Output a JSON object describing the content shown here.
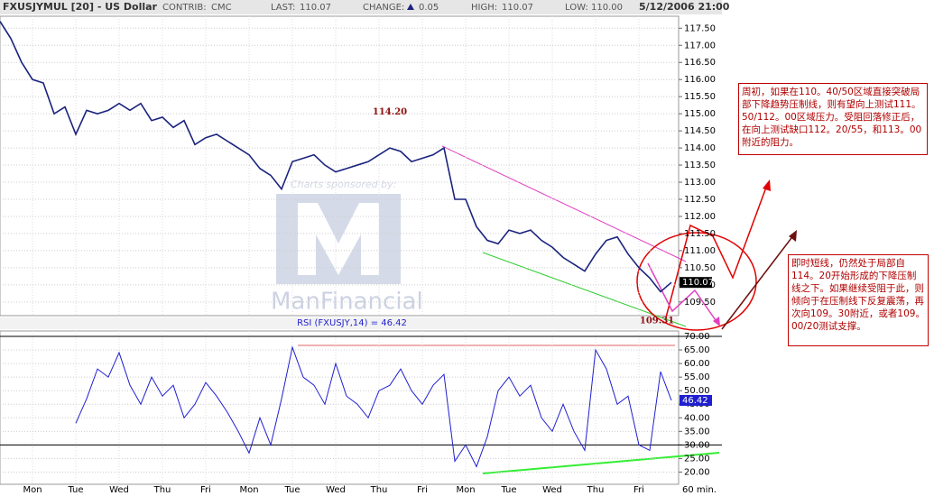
{
  "header": {
    "title": "FXUSJYMUL [20] - US Dollar",
    "fields": [
      {
        "label": "CONTRIB:",
        "value": "CMC"
      },
      {
        "label": "LAST:",
        "value": "110.07"
      },
      {
        "label": "CHANGE:",
        "value": "0.05"
      },
      {
        "label": "HIGH:",
        "value": "110.07"
      },
      {
        "label": "LOW:",
        "value": "110.00"
      }
    ],
    "date": "5/12/2006 21:00"
  },
  "watermark": {
    "caption": "Charts sponsored by:",
    "brand": "ManFinancial"
  },
  "chart_data": [
    {
      "type": "line",
      "xlim": [
        0,
        62.5
      ],
      "ylim": [
        109.1,
        117.85
      ],
      "grid": true,
      "series": [
        {
          "name": "FXUSJYMUL",
          "color": "#1a237e",
          "values": [
            117.7,
            117.2,
            116.5,
            116.0,
            115.9,
            115.0,
            115.2,
            114.4,
            115.1,
            115.0,
            115.1,
            115.3,
            115.1,
            115.3,
            114.8,
            114.9,
            114.6,
            114.8,
            114.1,
            114.3,
            114.4,
            114.2,
            114.0,
            113.8,
            113.4,
            113.2,
            112.8,
            113.6,
            113.7,
            113.8,
            113.5,
            113.3,
            113.4,
            113.5,
            113.6,
            113.8,
            114.0,
            113.9,
            113.6,
            113.7,
            113.8,
            114.0,
            112.5,
            112.5,
            111.7,
            111.3,
            111.2,
            111.6,
            111.5,
            111.6,
            111.3,
            111.1,
            110.8,
            110.6,
            110.4,
            110.9,
            111.3,
            111.4,
            110.9,
            110.5,
            110.2,
            109.8,
            110.07
          ]
        }
      ],
      "last_marker": 110.07,
      "annotations": [
        {
          "text": "114.20",
          "value": 114.2
        },
        {
          "text": "109.31",
          "value": 109.31
        }
      ],
      "yticks": [
        {
          "value": 109.5,
          "label": "109.50"
        },
        {
          "value": 110,
          "label": "110.00"
        },
        {
          "value": 110.5,
          "label": "110.50"
        },
        {
          "value": 111,
          "label": "111.00"
        },
        {
          "value": 111.5,
          "label": "111.50"
        },
        {
          "value": 112,
          "label": "112.00"
        },
        {
          "value": 112.5,
          "label": "112.50"
        },
        {
          "value": 113,
          "label": "113.00"
        },
        {
          "value": 113.5,
          "label": "113.50"
        },
        {
          "value": 114,
          "label": "114.00"
        },
        {
          "value": 114.5,
          "label": "114.50"
        },
        {
          "value": 115,
          "label": "115.00"
        },
        {
          "value": 115.5,
          "label": "115.50"
        },
        {
          "value": 116,
          "label": "116.00"
        },
        {
          "value": 116.5,
          "label": "116.50"
        },
        {
          "value": 117,
          "label": "117.00"
        },
        {
          "value": 117.5,
          "label": "117.50"
        }
      ]
    },
    {
      "type": "line",
      "title": "RSI (FXUSJY,14) = 46.42",
      "xlim": [
        0,
        62.5
      ],
      "ylim": [
        15.5,
        72
      ],
      "grid": true,
      "series": [
        {
          "name": "RSI",
          "color": "#1f1fd0",
          "values": [
            null,
            null,
            null,
            null,
            null,
            null,
            null,
            38,
            47,
            58,
            55,
            64,
            52,
            45,
            55,
            48,
            52,
            40,
            45,
            53,
            48,
            42,
            35,
            27,
            40,
            30,
            47,
            66,
            55,
            52,
            45,
            60,
            48,
            45,
            40,
            50,
            52,
            58,
            50,
            45,
            52,
            56,
            24,
            30,
            22,
            33,
            50,
            55,
            48,
            52,
            40,
            35,
            45,
            35,
            28,
            65,
            58,
            45,
            48,
            30,
            28,
            57,
            46.42
          ]
        }
      ],
      "last_marker": 46.42,
      "levels": [
        30,
        70
      ],
      "yticks": [
        {
          "value": 20,
          "label": "20.00"
        },
        {
          "value": 25,
          "label": "25.00"
        },
        {
          "value": 30,
          "label": "30.00"
        },
        {
          "value": 35,
          "label": "35.00"
        },
        {
          "value": 40,
          "label": "40.00"
        },
        {
          "value": 45,
          "label": "45.00"
        },
        {
          "value": 50,
          "label": "50.00"
        },
        {
          "value": 55,
          "label": "55.00"
        },
        {
          "value": 60,
          "label": "60.00"
        },
        {
          "value": 65,
          "label": "65.00"
        },
        {
          "value": 70,
          "label": "70.00"
        }
      ],
      "xticks": [
        {
          "value": 3,
          "label": "Mon"
        },
        {
          "value": 7,
          "label": "Tue"
        },
        {
          "value": 11,
          "label": "Wed"
        },
        {
          "value": 15,
          "label": "Thu"
        },
        {
          "value": 19,
          "label": "Fri"
        },
        {
          "value": 23,
          "label": "Mon"
        },
        {
          "value": 27,
          "label": "Tue"
        },
        {
          "value": 31,
          "label": "Wed"
        },
        {
          "value": 35,
          "label": "Thu"
        },
        {
          "value": 39,
          "label": "Fri"
        },
        {
          "value": 43,
          "label": "Mon"
        },
        {
          "value": 47,
          "label": "Tue"
        },
        {
          "value": 51,
          "label": "Wed"
        },
        {
          "value": 55,
          "label": "Thu"
        },
        {
          "value": 59,
          "label": "Fri"
        }
      ],
      "interval": "60 min."
    }
  ],
  "notes": [
    "周初，如果在110。40/50区域直接突破局部下降趋势压制线，则有望向上测试111。50/112。00区域压力。受阻回落修正后，在向上测试缺口112。20/55，和113。00附近的阻力。",
    "即时短线，仍然处于局部自114。20开始形成的下降压制线之下。如果继续受阻于此，则倾向于在压制线下反复震荡，再次向109。30附近，或者109。00/20测试支撑。"
  ]
}
